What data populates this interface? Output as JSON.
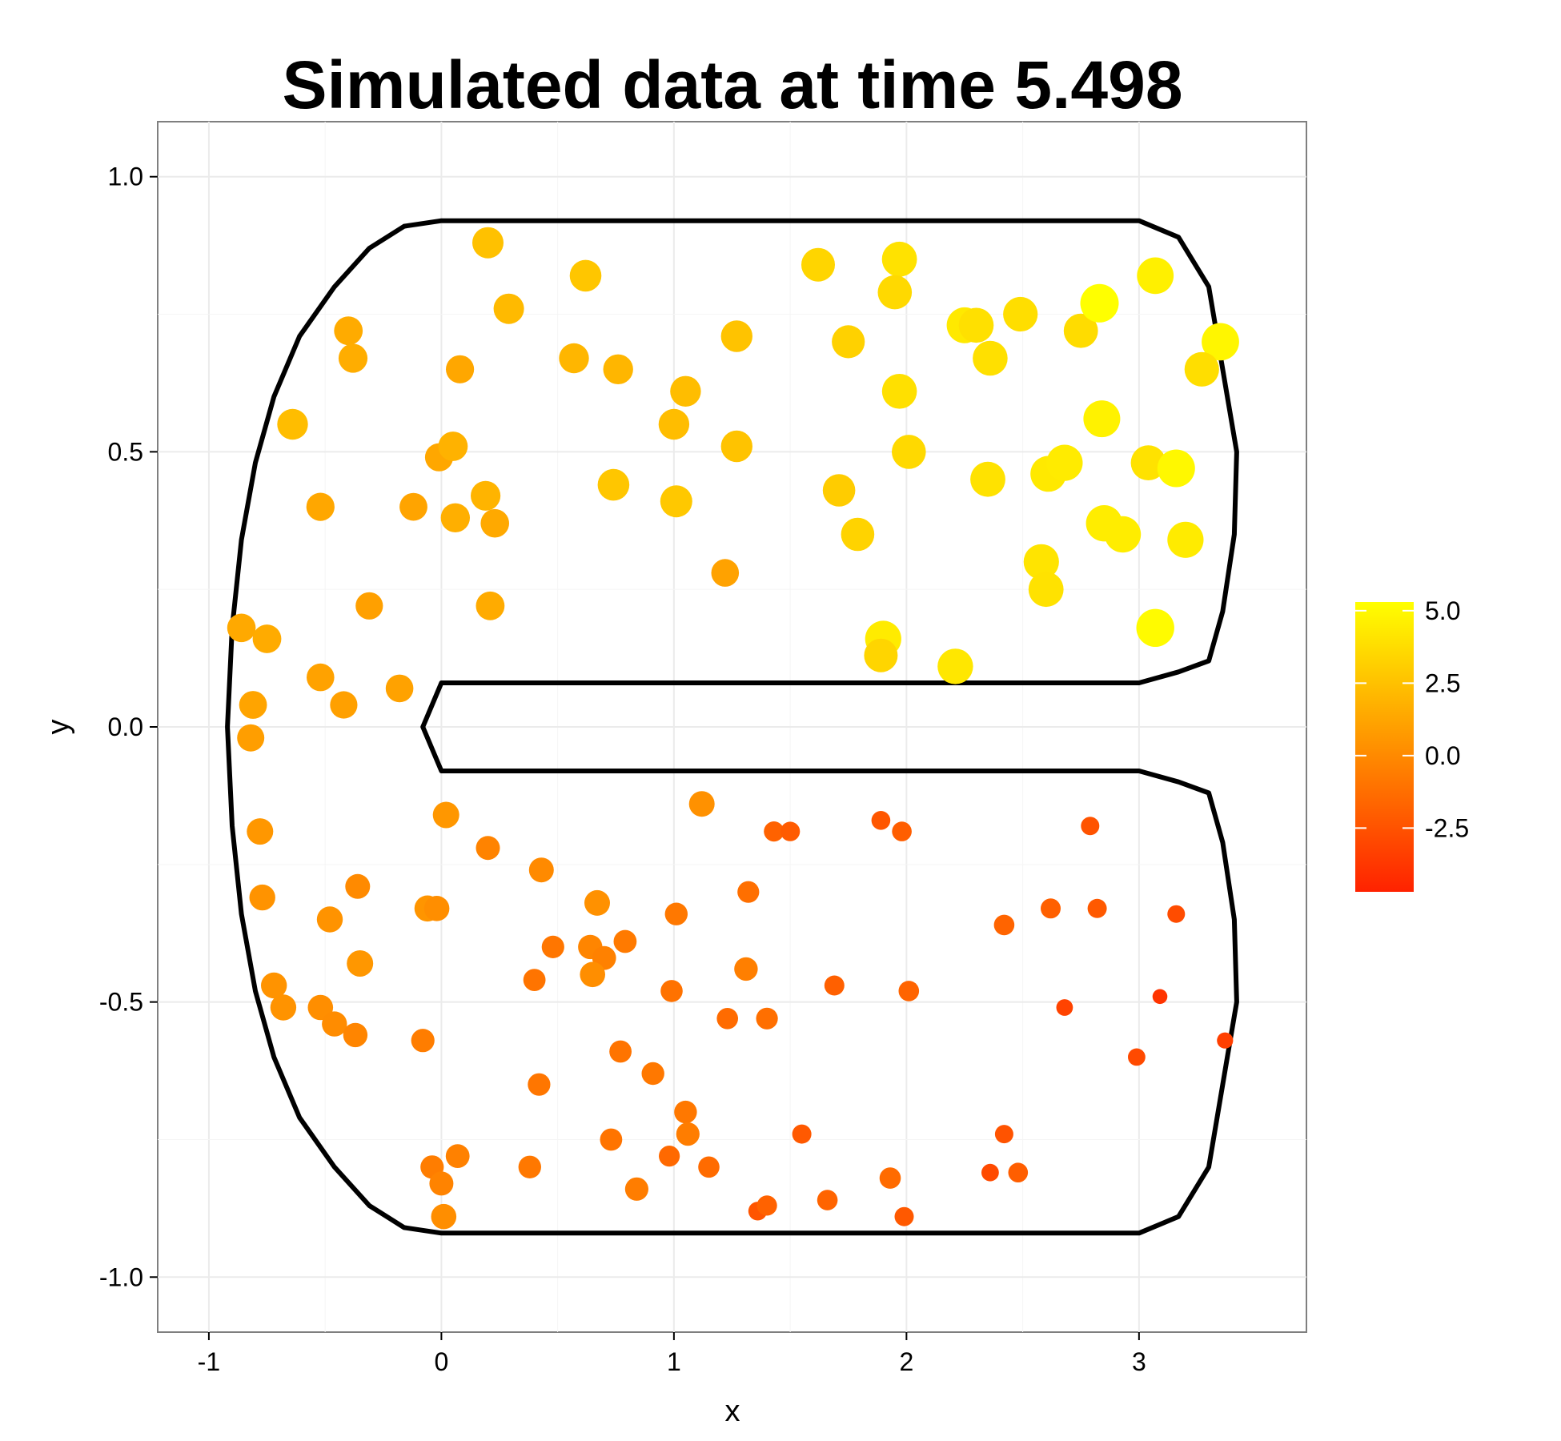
{
  "chart_data": {
    "type": "scatter",
    "title": "Simulated data at time 5.498",
    "xlabel": "x",
    "ylabel": "y",
    "xlim": [
      -1.22,
      3.72
    ],
    "ylim": [
      -1.1,
      1.1
    ],
    "x_ticks": [
      {
        "value": -1,
        "label": "-1"
      },
      {
        "value": 0,
        "label": "0"
      },
      {
        "value": 1,
        "label": "1"
      },
      {
        "value": 2,
        "label": "2"
      },
      {
        "value": 3,
        "label": "3"
      }
    ],
    "y_ticks": [
      {
        "value": 1.0,
        "label": "1.0"
      },
      {
        "value": 0.5,
        "label": "0.5"
      },
      {
        "value": 0.0,
        "label": "0.0"
      },
      {
        "value": -0.5,
        "label": "-0.5"
      },
      {
        "value": -1.0,
        "label": "-1.0"
      }
    ],
    "grid": true,
    "legend": {
      "position": "right",
      "type": "colorbar",
      "range": [
        -4.7,
        5.3
      ],
      "colors": [
        "#ff2200",
        "#ffff00"
      ],
      "ticks": [
        {
          "value": 5.0,
          "label": "5.0"
        },
        {
          "value": 2.5,
          "label": "2.5"
        },
        {
          "value": 0.0,
          "label": "0.0"
        },
        {
          "value": -2.5,
          "label": "-2.5"
        }
      ]
    },
    "boundary": [
      [
        0,
        0.92
      ],
      [
        3,
        0.92
      ],
      [
        3.17,
        0.89
      ],
      [
        3.3,
        0.8
      ],
      [
        3.38,
        0.6
      ],
      [
        3.42,
        0.5
      ],
      [
        3.41,
        0.35
      ],
      [
        3.36,
        0.21
      ],
      [
        3.3,
        0.12
      ],
      [
        3.17,
        0.1
      ],
      [
        3,
        0.08
      ],
      [
        0,
        0.08
      ],
      [
        -0.08,
        0
      ],
      [
        0,
        -0.08
      ],
      [
        3,
        -0.08
      ],
      [
        3.17,
        -0.1
      ],
      [
        3.3,
        -0.12
      ],
      [
        3.36,
        -0.21
      ],
      [
        3.41,
        -0.35
      ],
      [
        3.42,
        -0.5
      ],
      [
        3.38,
        -0.6
      ],
      [
        3.3,
        -0.8
      ],
      [
        3.17,
        -0.89
      ],
      [
        3,
        -0.92
      ],
      [
        0,
        -0.92
      ],
      [
        -0.16,
        -0.91
      ],
      [
        -0.31,
        -0.87
      ],
      [
        -0.46,
        -0.8
      ],
      [
        -0.61,
        -0.71
      ],
      [
        -0.72,
        -0.6
      ],
      [
        -0.8,
        -0.48
      ],
      [
        -0.86,
        -0.34
      ],
      [
        -0.9,
        -0.18
      ],
      [
        -0.92,
        0
      ],
      [
        -0.9,
        0.18
      ],
      [
        -0.86,
        0.34
      ],
      [
        -0.8,
        0.48
      ],
      [
        -0.72,
        0.6
      ],
      [
        -0.61,
        0.71
      ],
      [
        -0.46,
        0.8
      ],
      [
        -0.31,
        0.87
      ],
      [
        -0.16,
        0.91
      ],
      [
        0,
        0.92
      ]
    ],
    "points": [
      {
        "x": 0.2,
        "y": 0.88,
        "v": 2.5
      },
      {
        "x": 0.62,
        "y": 0.82,
        "v": 2.7
      },
      {
        "x": 0.29,
        "y": 0.76,
        "v": 2.2
      },
      {
        "x": -0.4,
        "y": 0.72,
        "v": 1.5
      },
      {
        "x": -0.38,
        "y": 0.67,
        "v": 1.6
      },
      {
        "x": 0.08,
        "y": 0.65,
        "v": 1.3
      },
      {
        "x": 0.57,
        "y": 0.67,
        "v": 2.0
      },
      {
        "x": 0.76,
        "y": 0.65,
        "v": 2.0
      },
      {
        "x": 1.05,
        "y": 0.61,
        "v": 2.3
      },
      {
        "x": 1.27,
        "y": 0.71,
        "v": 2.6
      },
      {
        "x": 1.0,
        "y": 0.55,
        "v": 2.3
      },
      {
        "x": 1.27,
        "y": 0.51,
        "v": 2.6
      },
      {
        "x": 0.74,
        "y": 0.44,
        "v": 2.7
      },
      {
        "x": 1.01,
        "y": 0.41,
        "v": 2.8
      },
      {
        "x": 1.62,
        "y": 0.84,
        "v": 3.4
      },
      {
        "x": 1.97,
        "y": 0.85,
        "v": 4.0
      },
      {
        "x": 1.95,
        "y": 0.79,
        "v": 3.6
      },
      {
        "x": 1.75,
        "y": 0.7,
        "v": 3.2
      },
      {
        "x": 1.97,
        "y": 0.61,
        "v": 3.9
      },
      {
        "x": 2.01,
        "y": 0.5,
        "v": 3.6
      },
      {
        "x": 1.71,
        "y": 0.43,
        "v": 3.0
      },
      {
        "x": 1.79,
        "y": 0.35,
        "v": 3.3
      },
      {
        "x": 2.25,
        "y": 0.73,
        "v": 4.3
      },
      {
        "x": 2.3,
        "y": 0.73,
        "v": 3.9
      },
      {
        "x": 2.36,
        "y": 0.67,
        "v": 3.9
      },
      {
        "x": 2.49,
        "y": 0.75,
        "v": 3.8
      },
      {
        "x": 2.75,
        "y": 0.72,
        "v": 3.7
      },
      {
        "x": 2.83,
        "y": 0.77,
        "v": 5.3
      },
      {
        "x": 3.07,
        "y": 0.82,
        "v": 4.6
      },
      {
        "x": 3.35,
        "y": 0.7,
        "v": 4.9
      },
      {
        "x": 3.27,
        "y": 0.65,
        "v": 3.8
      },
      {
        "x": 2.84,
        "y": 0.56,
        "v": 4.7
      },
      {
        "x": 2.35,
        "y": 0.45,
        "v": 4.0
      },
      {
        "x": 2.61,
        "y": 0.46,
        "v": 4.3
      },
      {
        "x": 2.68,
        "y": 0.48,
        "v": 4.4
      },
      {
        "x": 3.04,
        "y": 0.48,
        "v": 4.0
      },
      {
        "x": 3.16,
        "y": 0.47,
        "v": 5.0
      },
      {
        "x": 2.85,
        "y": 0.37,
        "v": 4.5
      },
      {
        "x": 2.93,
        "y": 0.35,
        "v": 4.5
      },
      {
        "x": 3.2,
        "y": 0.34,
        "v": 4.4
      },
      {
        "x": 2.58,
        "y": 0.3,
        "v": 4.1
      },
      {
        "x": 2.6,
        "y": 0.25,
        "v": 4.0
      },
      {
        "x": 3.07,
        "y": 0.18,
        "v": 5.1
      },
      {
        "x": 1.9,
        "y": 0.16,
        "v": 4.4
      },
      {
        "x": 1.89,
        "y": 0.13,
        "v": 3.4
      },
      {
        "x": 2.21,
        "y": 0.11,
        "v": 4.2
      },
      {
        "x": -0.64,
        "y": 0.55,
        "v": 2.3
      },
      {
        "x": -0.52,
        "y": 0.4,
        "v": 1.3
      },
      {
        "x": -0.01,
        "y": 0.49,
        "v": 1.3
      },
      {
        "x": 0.05,
        "y": 0.51,
        "v": 1.8
      },
      {
        "x": -0.12,
        "y": 0.4,
        "v": 1.2
      },
      {
        "x": 0.19,
        "y": 0.42,
        "v": 1.9
      },
      {
        "x": 0.06,
        "y": 0.38,
        "v": 1.7
      },
      {
        "x": 0.23,
        "y": 0.37,
        "v": 1.4
      },
      {
        "x": 1.22,
        "y": 0.28,
        "v": 1.1
      },
      {
        "x": -0.31,
        "y": 0.22,
        "v": 1.0
      },
      {
        "x": 0.21,
        "y": 0.22,
        "v": 1.5
      },
      {
        "x": -0.86,
        "y": 0.18,
        "v": 1.4
      },
      {
        "x": -0.75,
        "y": 0.16,
        "v": 1.5
      },
      {
        "x": -0.52,
        "y": 0.09,
        "v": 1.1
      },
      {
        "x": -0.42,
        "y": 0.04,
        "v": 1.0
      },
      {
        "x": -0.18,
        "y": 0.07,
        "v": 1.1
      },
      {
        "x": -0.81,
        "y": 0.04,
        "v": 1.2
      },
      {
        "x": -0.82,
        "y": -0.02,
        "v": 0.9
      },
      {
        "x": -0.78,
        "y": -0.19,
        "v": 0.6
      },
      {
        "x": 0.02,
        "y": -0.16,
        "v": 0.6
      },
      {
        "x": 1.12,
        "y": -0.14,
        "v": 0.3
      },
      {
        "x": 0.2,
        "y": -0.22,
        "v": -0.3
      },
      {
        "x": 0.43,
        "y": -0.26,
        "v": 0.0
      },
      {
        "x": -0.77,
        "y": -0.31,
        "v": 0.4
      },
      {
        "x": -0.36,
        "y": -0.29,
        "v": 0.0
      },
      {
        "x": -0.48,
        "y": -0.35,
        "v": 0.4
      },
      {
        "x": -0.06,
        "y": -0.33,
        "v": 0.5
      },
      {
        "x": -0.02,
        "y": -0.33,
        "v": 0.2
      },
      {
        "x": 0.67,
        "y": -0.32,
        "v": 0.3
      },
      {
        "x": 1.01,
        "y": -0.34,
        "v": -0.8
      },
      {
        "x": 1.32,
        "y": -0.3,
        "v": -1.2
      },
      {
        "x": -0.35,
        "y": -0.43,
        "v": 0.6
      },
      {
        "x": 0.48,
        "y": -0.4,
        "v": -0.9
      },
      {
        "x": 0.64,
        "y": -0.4,
        "v": -0.2
      },
      {
        "x": 0.7,
        "y": -0.42,
        "v": -0.4
      },
      {
        "x": 0.79,
        "y": -0.39,
        "v": -0.7
      },
      {
        "x": 0.65,
        "y": -0.45,
        "v": 0.2
      },
      {
        "x": 1.31,
        "y": -0.44,
        "v": -0.5
      },
      {
        "x": 0.4,
        "y": -0.46,
        "v": -1.0
      },
      {
        "x": 0.99,
        "y": -0.48,
        "v": -1.1
      },
      {
        "x": -0.72,
        "y": -0.47,
        "v": 0.4
      },
      {
        "x": -0.68,
        "y": -0.51,
        "v": 0.4
      },
      {
        "x": -0.52,
        "y": -0.51,
        "v": 0.2
      },
      {
        "x": -0.46,
        "y": -0.54,
        "v": 0.1
      },
      {
        "x": -0.37,
        "y": -0.56,
        "v": -0.2
      },
      {
        "x": -0.08,
        "y": -0.57,
        "v": -0.6
      },
      {
        "x": 0.77,
        "y": -0.59,
        "v": -1.0
      },
      {
        "x": 0.91,
        "y": -0.63,
        "v": -0.8
      },
      {
        "x": 0.42,
        "y": -0.65,
        "v": -0.9
      },
      {
        "x": 1.23,
        "y": -0.53,
        "v": -1.4
      },
      {
        "x": 1.4,
        "y": -0.53,
        "v": -1.2
      },
      {
        "x": 1.43,
        "y": -0.19,
        "v": -1.8
      },
      {
        "x": 1.5,
        "y": -0.19,
        "v": -2.1
      },
      {
        "x": 1.89,
        "y": -0.17,
        "v": -2.3
      },
      {
        "x": 1.98,
        "y": -0.19,
        "v": -2.0
      },
      {
        "x": 2.79,
        "y": -0.18,
        "v": -2.5
      },
      {
        "x": 2.42,
        "y": -0.36,
        "v": -1.7
      },
      {
        "x": 2.62,
        "y": -0.33,
        "v": -1.9
      },
      {
        "x": 2.82,
        "y": -0.33,
        "v": -2.2
      },
      {
        "x": 3.16,
        "y": -0.34,
        "v": -2.8
      },
      {
        "x": 1.69,
        "y": -0.47,
        "v": -1.9
      },
      {
        "x": 2.01,
        "y": -0.48,
        "v": -1.7
      },
      {
        "x": 2.68,
        "y": -0.51,
        "v": -3.2
      },
      {
        "x": 3.09,
        "y": -0.49,
        "v": -3.9
      },
      {
        "x": 3.37,
        "y": -0.57,
        "v": -3.4
      },
      {
        "x": 2.99,
        "y": -0.6,
        "v": -2.9
      },
      {
        "x": 1.05,
        "y": -0.7,
        "v": -0.8
      },
      {
        "x": 1.06,
        "y": -0.74,
        "v": -0.6
      },
      {
        "x": 0.73,
        "y": -0.75,
        "v": -1.0
      },
      {
        "x": 0.98,
        "y": -0.78,
        "v": -1.5
      },
      {
        "x": 1.15,
        "y": -0.8,
        "v": -1.4
      },
      {
        "x": 1.55,
        "y": -0.74,
        "v": -2.2
      },
      {
        "x": 2.42,
        "y": -0.74,
        "v": -2.5
      },
      {
        "x": 0.38,
        "y": -0.8,
        "v": -0.8
      },
      {
        "x": 0.07,
        "y": -0.78,
        "v": -0.4
      },
      {
        "x": -0.04,
        "y": -0.8,
        "v": -0.6
      },
      {
        "x": 0.0,
        "y": -0.83,
        "v": -0.3
      },
      {
        "x": 0.01,
        "y": -0.89,
        "v": 0.2
      },
      {
        "x": 0.84,
        "y": -0.84,
        "v": -0.6
      },
      {
        "x": 1.36,
        "y": -0.88,
        "v": -2.4
      },
      {
        "x": 1.4,
        "y": -0.87,
        "v": -1.8
      },
      {
        "x": 1.66,
        "y": -0.86,
        "v": -1.7
      },
      {
        "x": 1.93,
        "y": -0.82,
        "v": -1.4
      },
      {
        "x": 1.99,
        "y": -0.89,
        "v": -2.2
      },
      {
        "x": 2.36,
        "y": -0.81,
        "v": -2.9
      },
      {
        "x": 2.48,
        "y": -0.81,
        "v": -2.0
      }
    ]
  }
}
